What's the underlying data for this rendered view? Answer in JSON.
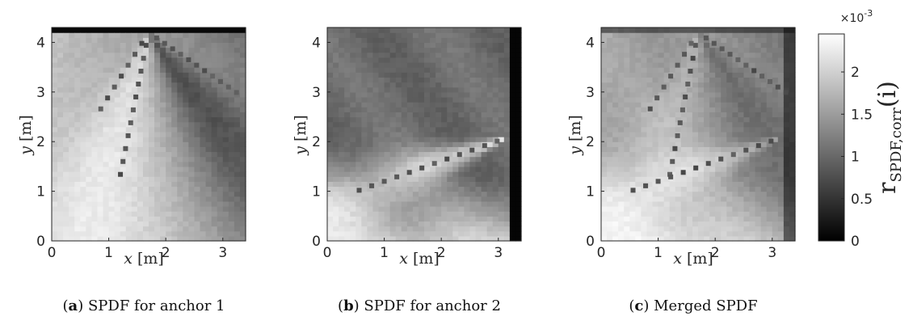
{
  "chart_data": [
    {
      "type": "heatmap",
      "caption_tag": "a",
      "caption_text": "SPDF for anchor 1",
      "xlabel_var": "x",
      "xlabel_unit": "[m]",
      "ylabel_var": "y",
      "ylabel_unit": "[m]",
      "xlim": [
        0,
        3.4
      ],
      "ylim": [
        0,
        4.3
      ],
      "xticks": [
        "0",
        "1",
        "2",
        "3"
      ],
      "yticks": [
        "0",
        "1",
        "2",
        "3",
        "4"
      ],
      "anchor": [
        1.7,
        4.2
      ],
      "colormap": "gray"
    },
    {
      "type": "heatmap",
      "caption_tag": "b",
      "caption_text": "SPDF for anchor 2",
      "xlabel_var": "x",
      "xlabel_unit": "[m]",
      "ylabel_var": "y",
      "ylabel_unit": "[m]",
      "xlim": [
        0,
        3.4
      ],
      "ylim": [
        0,
        4.3
      ],
      "xticks": [
        "0",
        "1",
        "2",
        "3"
      ],
      "yticks": [
        "0",
        "1",
        "2",
        "3",
        "4"
      ],
      "anchor": [
        3.2,
        2.1
      ],
      "colormap": "gray"
    },
    {
      "type": "heatmap",
      "caption_tag": "c",
      "caption_text": "Merged SPDF",
      "xlabel_var": "x",
      "xlabel_unit": "[m]",
      "ylabel_var": "y",
      "ylabel_unit": "[m]",
      "xlim": [
        0,
        3.4
      ],
      "ylim": [
        0,
        4.3
      ],
      "xticks": [
        "0",
        "1",
        "2",
        "3"
      ],
      "yticks": [
        "0",
        "1",
        "2",
        "3",
        "4"
      ],
      "anchors": [
        [
          1.7,
          4.2
        ],
        [
          3.2,
          2.1
        ]
      ],
      "colormap": "gray"
    }
  ],
  "colorbar": {
    "multiplier_base": "×10",
    "multiplier_exp": "-3",
    "range": [
      0,
      2.45
    ],
    "ticks": [
      0,
      0.5,
      1,
      1.5,
      2
    ],
    "tick_labels": [
      "0",
      "0.5",
      "1",
      "1.5",
      "2"
    ],
    "label_main": "r",
    "label_sub": "SPDF,corr",
    "label_arg": "(i)"
  }
}
